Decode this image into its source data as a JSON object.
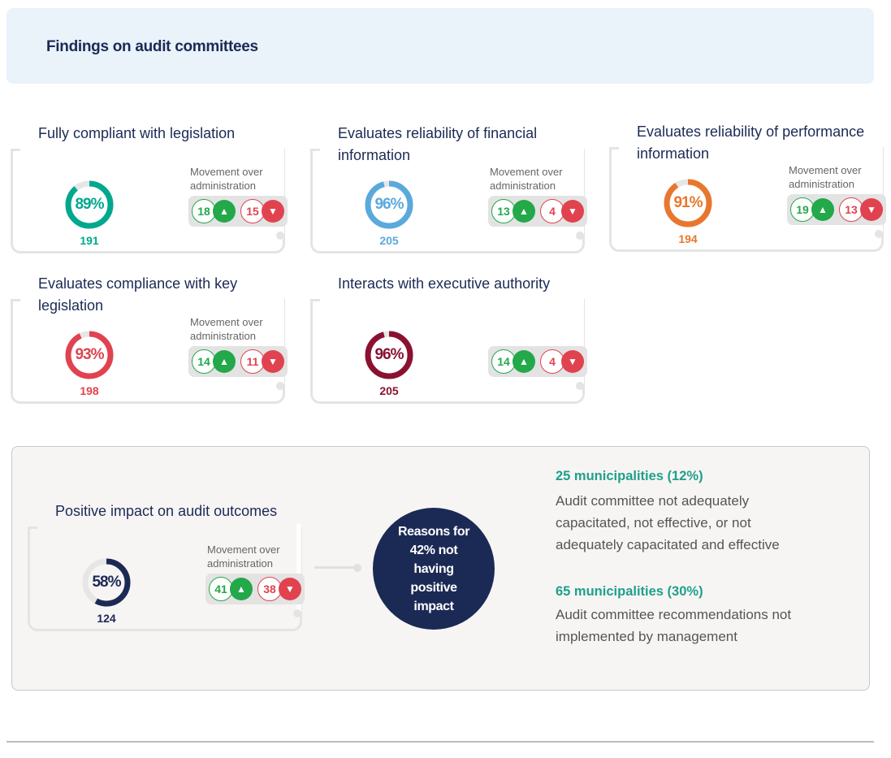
{
  "header": {
    "title": "Findings on audit committees"
  },
  "movement_label": "Movement over administration",
  "colors": {
    "up": "#23a84a",
    "down": "#e0434f",
    "navy": "#1b2a55",
    "track": "#e6e6e6"
  },
  "cards": [
    {
      "title": "Fully compliant with legislation",
      "percent": 89,
      "percent_label": "89%",
      "count": "191",
      "color": "#00a88e",
      "up": "18",
      "down": "15",
      "show_movement_label": true
    },
    {
      "title": "Evaluates reliability of financial information",
      "percent": 96,
      "percent_label": "96%",
      "count": "205",
      "color": "#5aa9dd",
      "up": "13",
      "down": "4",
      "show_movement_label": true
    },
    {
      "title": "Evaluates reliability of performance information",
      "percent": 91,
      "percent_label": "91%",
      "count": "194",
      "color": "#e8772e",
      "up": "19",
      "down": "13",
      "show_movement_label": true
    },
    {
      "title": "Evaluates compliance with key legislation",
      "percent": 93,
      "percent_label": "93%",
      "count": "198",
      "color": "#e0434f",
      "up": "14",
      "down": "11",
      "show_movement_label": true
    },
    {
      "title": "Interacts with executive authority",
      "percent": 96,
      "percent_label": "96%",
      "count": "205",
      "color": "#8a1230",
      "up": "14",
      "down": "4",
      "show_movement_label": false
    }
  ],
  "impact": {
    "card": {
      "title": "Positive impact on audit outcomes",
      "percent": 58,
      "percent_label": "58%",
      "count": "124",
      "color": "#1b2a55",
      "up": "41",
      "down": "38",
      "show_movement_label": true
    },
    "reasons_label": "Reasons for 42% not having positive impact",
    "reasons": [
      {
        "heading": "25 municipalities (12%)",
        "text": "Audit committee not adequately capacitated, not effective, or not adequately capacitated and effective"
      },
      {
        "heading": "65 municipalities (30%)",
        "text": "Audit committee recommendations not implemented by management"
      }
    ]
  }
}
